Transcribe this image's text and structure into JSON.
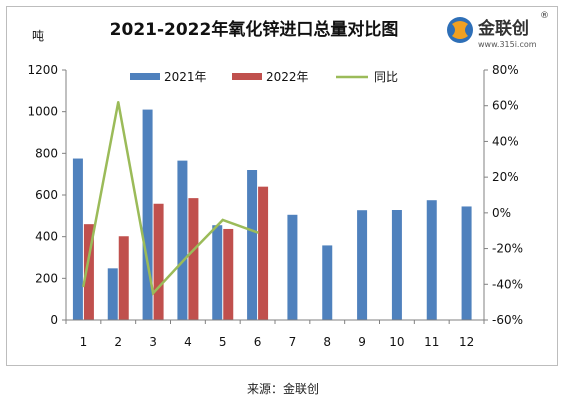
{
  "chart_data": {
    "type": "bar",
    "title": "2021-2022年氧化锌进口总量对比图",
    "y_unit": "吨",
    "categories": [
      "1",
      "2",
      "3",
      "4",
      "5",
      "6",
      "7",
      "8",
      "9",
      "10",
      "11",
      "12"
    ],
    "series": [
      {
        "name": "2021年",
        "type": "bar",
        "color": "#4F81BD",
        "values": [
          775,
          248,
          1010,
          765,
          455,
          720,
          505,
          358,
          527,
          528,
          575,
          545
        ]
      },
      {
        "name": "2022年",
        "type": "bar",
        "color": "#C0504D",
        "values": [
          460,
          402,
          558,
          585,
          437,
          640,
          null,
          null,
          null,
          null,
          null,
          null
        ]
      },
      {
        "name": "同比",
        "type": "line",
        "axis": "right",
        "color": "#9BBB59",
        "values": [
          -41,
          62,
          -45,
          -24,
          -4,
          -11,
          null,
          null,
          null,
          null,
          null,
          null
        ]
      }
    ],
    "ylim_left": [
      0,
      1200
    ],
    "yticks_left": [
      "0",
      "200",
      "400",
      "600",
      "800",
      "1000",
      "1200"
    ],
    "ylim_right": [
      -60,
      80
    ],
    "yticks_right": [
      "-60%",
      "-40%",
      "-20%",
      "0%",
      "20%",
      "40%",
      "60%",
      "80%"
    ],
    "legend_position": "top"
  },
  "logo": {
    "name": "金联创",
    "url": "www.315i.com",
    "mark": "®"
  },
  "source": "来源：金联创"
}
